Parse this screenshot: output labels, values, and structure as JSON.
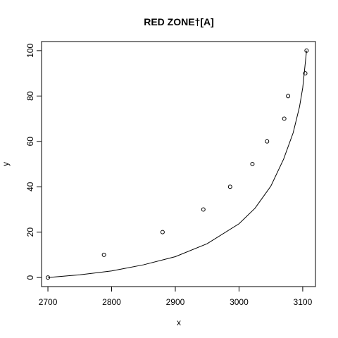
{
  "chart_data": {
    "type": "scatter",
    "title": "RED ZONE†[A]",
    "xlabel": "x",
    "ylabel": "y",
    "xlim": [
      2690,
      3120
    ],
    "ylim": [
      -4,
      104
    ],
    "x_ticks": [
      2700,
      2800,
      2900,
      3000,
      3100
    ],
    "y_ticks": [
      0,
      20,
      40,
      60,
      80,
      100
    ],
    "grid": false,
    "legend": "none",
    "points": [
      {
        "x": 2700,
        "y": 0
      },
      {
        "x": 2788,
        "y": 10
      },
      {
        "x": 2880,
        "y": 20
      },
      {
        "x": 2944,
        "y": 30
      },
      {
        "x": 2986,
        "y": 40
      },
      {
        "x": 3021,
        "y": 50
      },
      {
        "x": 3044,
        "y": 60
      },
      {
        "x": 3071,
        "y": 70
      },
      {
        "x": 3077,
        "y": 80
      },
      {
        "x": 3104,
        "y": 90
      },
      {
        "x": 3106,
        "y": 100
      }
    ],
    "fitted_line": {
      "x": [
        2700,
        2750,
        2800,
        2850,
        2900,
        2950,
        3000,
        3025,
        3050,
        3070,
        3085,
        3095,
        3100,
        3106
      ],
      "y": [
        0,
        1.2,
        2.9,
        5.6,
        9.2,
        14.9,
        23.7,
        30.5,
        40.3,
        52.2,
        63.8,
        75.3,
        83.6,
        100
      ]
    }
  }
}
